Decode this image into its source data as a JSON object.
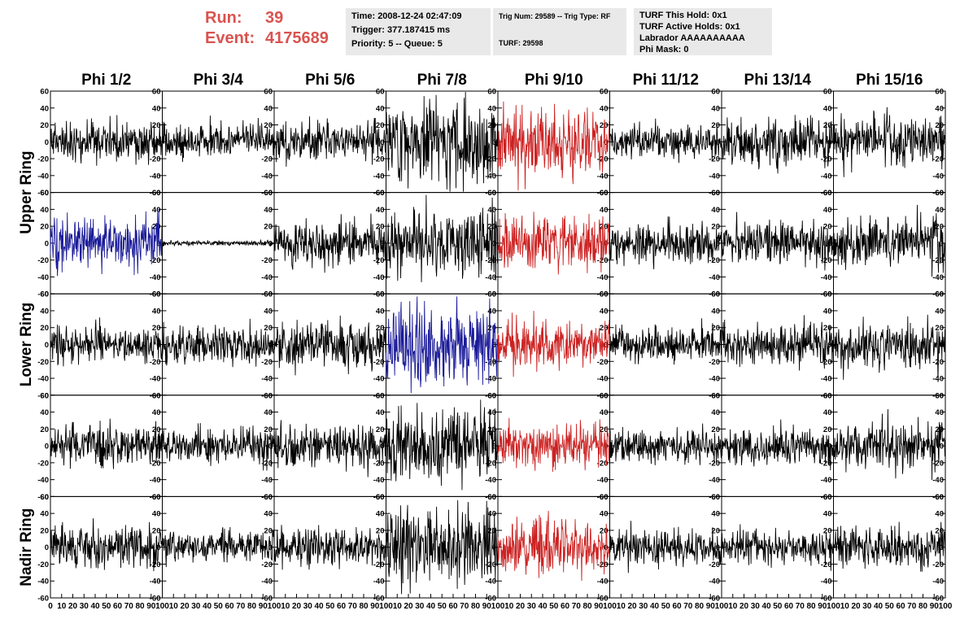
{
  "header": {
    "run_label": "Run:",
    "run_value": "39",
    "event_label": "Event:",
    "event_value": "4175689"
  },
  "info_panel_1": {
    "time": "Time: 2008-12-24 02:47:09",
    "trigger": "Trigger: 377.187415 ms",
    "priority_queue": "Priority: 5 -- Queue: 5"
  },
  "info_panel_2": {
    "trig_num": "Trig Num: 29589 -- Trig Type: RF",
    "turf": "TURF: 29598"
  },
  "info_panel_3": {
    "this_hold": "TURF This Hold: 0x1",
    "active_holds": "TURF Active Holds: 0x1",
    "labrador": "Labrador AAAAAAAAAA",
    "phi_mask": "Phi Mask: 0"
  },
  "colors": {
    "header_red": "#d9534f",
    "trace_black": "#000000",
    "trace_red": "#cc2222",
    "trace_blue": "#1a1a99",
    "panel_grey": "#e9e9e9"
  },
  "chart_data": {
    "type": "line",
    "columns": [
      "Phi 1/2",
      "Phi 3/4",
      "Phi 5/6",
      "Phi 7/8",
      "Phi 9/10",
      "Phi 11/12",
      "Phi 13/14",
      "Phi 15/16"
    ],
    "ring_labels": [
      "Upper Ring",
      "Lower Ring",
      "Nadir Ring"
    ],
    "rows": 5,
    "xlim": [
      0,
      100
    ],
    "ylim": [
      -60,
      60
    ],
    "x_ticks": [
      "0",
      "10",
      "20",
      "30",
      "40",
      "50",
      "60",
      "70",
      "80",
      "90",
      "100"
    ],
    "y_ticks_left": [
      "60",
      "40",
      "20",
      "0",
      "-20",
      "-40",
      "-60"
    ],
    "y_ticks_right": [
      "60",
      "40",
      "20",
      "0",
      "-20",
      "-40",
      "-60"
    ],
    "points_per_trace": 260,
    "traces": [
      [
        {
          "color": "black",
          "amp": 12,
          "seed": 11
        },
        {
          "color": "black",
          "amp": 11,
          "seed": 12
        },
        {
          "color": "black",
          "amp": 12,
          "seed": 13
        },
        {
          "color": "black",
          "amp": 24,
          "seed": 14
        },
        {
          "color": "red",
          "amp": 20,
          "seed": 15
        },
        {
          "color": "black",
          "amp": 10,
          "seed": 16
        },
        {
          "color": "black",
          "amp": 13,
          "seed": 17
        },
        {
          "color": "black",
          "amp": 14,
          "seed": 18
        }
      ],
      [
        {
          "color": "blue",
          "amp": 15,
          "seed": 21
        },
        {
          "color": "black",
          "amp": 1.5,
          "seed": 22
        },
        {
          "color": "black",
          "amp": 14,
          "seed": 23
        },
        {
          "color": "black",
          "amp": 20,
          "seed": 24
        },
        {
          "color": "red",
          "amp": 15,
          "seed": 25
        },
        {
          "color": "black",
          "amp": 12,
          "seed": 26
        },
        {
          "color": "black",
          "amp": 12,
          "seed": 27
        },
        {
          "color": "black",
          "amp": 15,
          "seed": 28
        }
      ],
      [
        {
          "color": "black",
          "amp": 11,
          "seed": 31
        },
        {
          "color": "black",
          "amp": 11,
          "seed": 32
        },
        {
          "color": "black",
          "amp": 14,
          "seed": 33
        },
        {
          "color": "blue",
          "amp": 24,
          "seed": 34
        },
        {
          "color": "red",
          "amp": 14,
          "seed": 35
        },
        {
          "color": "black",
          "amp": 11,
          "seed": 36
        },
        {
          "color": "black",
          "amp": 12,
          "seed": 37
        },
        {
          "color": "black",
          "amp": 14,
          "seed": 38
        }
      ],
      [
        {
          "color": "black",
          "amp": 12,
          "seed": 41
        },
        {
          "color": "black",
          "amp": 11,
          "seed": 42
        },
        {
          "color": "black",
          "amp": 13,
          "seed": 43
        },
        {
          "color": "black",
          "amp": 22,
          "seed": 44
        },
        {
          "color": "red",
          "amp": 13,
          "seed": 45
        },
        {
          "color": "black",
          "amp": 10,
          "seed": 46
        },
        {
          "color": "black",
          "amp": 11,
          "seed": 47
        },
        {
          "color": "black",
          "amp": 15,
          "seed": 48
        }
      ],
      [
        {
          "color": "black",
          "amp": 12,
          "seed": 51
        },
        {
          "color": "black",
          "amp": 10,
          "seed": 52
        },
        {
          "color": "black",
          "amp": 12,
          "seed": 53
        },
        {
          "color": "black",
          "amp": 24,
          "seed": 54
        },
        {
          "color": "red",
          "amp": 17,
          "seed": 55
        },
        {
          "color": "black",
          "amp": 11,
          "seed": 56
        },
        {
          "color": "black",
          "amp": 10,
          "seed": 57
        },
        {
          "color": "black",
          "amp": 12,
          "seed": 58
        }
      ]
    ]
  }
}
